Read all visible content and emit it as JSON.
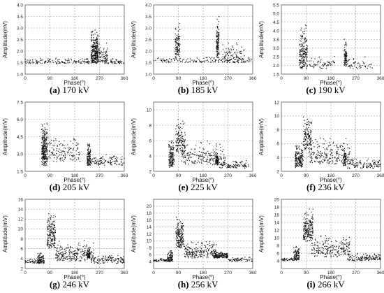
{
  "chart_data": [
    {
      "type": "scatter",
      "caption_letter": "(a)",
      "caption_value": "170 kV",
      "xlabel": "Phase(°)",
      "ylabel": "Amplitude(mV)",
      "xlim": [
        0,
        360
      ],
      "ylim": [
        1.0,
        4.0
      ],
      "xticks": [
        0,
        90,
        180,
        270,
        360
      ],
      "yticks": [
        1.0,
        1.5,
        2.0,
        2.5,
        3.0,
        3.5,
        4.0
      ],
      "clusters": [
        {
          "x": [
            0,
            360
          ],
          "y": [
            1.45,
            1.7
          ],
          "n": 220
        },
        {
          "x": [
            240,
            265
          ],
          "y": [
            1.5,
            3.0
          ],
          "n": 260
        },
        {
          "x": [
            262,
            300
          ],
          "y": [
            1.5,
            2.4
          ],
          "n": 70
        }
      ]
    },
    {
      "type": "scatter",
      "caption_letter": "(b)",
      "caption_value": "185 kV",
      "xlabel": "Phase(°)",
      "ylabel": "Amplitude(mV)",
      "xlim": [
        0,
        360
      ],
      "ylim": [
        1.0,
        4.0
      ],
      "xticks": [
        0,
        90,
        180,
        270,
        360
      ],
      "yticks": [
        1.0,
        1.5,
        2.0,
        2.5,
        3.0,
        3.5,
        4.0
      ],
      "clusters": [
        {
          "x": [
            0,
            360
          ],
          "y": [
            1.5,
            1.75
          ],
          "n": 160
        },
        {
          "x": [
            78,
            96
          ],
          "y": [
            1.6,
            3.3
          ],
          "n": 110
        },
        {
          "x": [
            228,
            238
          ],
          "y": [
            1.7,
            3.6
          ],
          "n": 110
        },
        {
          "x": [
            250,
            330
          ],
          "y": [
            1.6,
            2.4
          ],
          "n": 70
        }
      ]
    },
    {
      "type": "scatter",
      "caption_letter": "(c)",
      "caption_value": "190 kV",
      "xlabel": "Phase(°)",
      "ylabel": "Amplitude(mV)",
      "xlim": [
        0,
        360
      ],
      "ylim": [
        1.5,
        5.5
      ],
      "xticks": [
        0,
        90,
        180,
        270,
        360
      ],
      "yticks": [
        1.5,
        2.0,
        2.5,
        3.0,
        3.5,
        4.0,
        4.5,
        5.0,
        5.5
      ],
      "clusters": [
        {
          "x": [
            65,
            95
          ],
          "y": [
            1.8,
            4.5
          ],
          "n": 190
        },
        {
          "x": [
            100,
            200
          ],
          "y": [
            1.8,
            2.6
          ],
          "n": 60
        },
        {
          "x": [
            228,
            238
          ],
          "y": [
            1.9,
            3.6
          ],
          "n": 80
        },
        {
          "x": [
            240,
            330
          ],
          "y": [
            1.8,
            2.6
          ],
          "n": 50
        }
      ]
    },
    {
      "type": "scatter",
      "caption_letter": "(d)",
      "caption_value": "205 kV",
      "xlabel": "Phase(°)",
      "ylabel": "Amplitude(mV)",
      "xlim": [
        0,
        360
      ],
      "ylim": [
        1.5,
        7.5
      ],
      "xticks": [
        0,
        90,
        180,
        270,
        360
      ],
      "yticks": [
        1.5,
        3.0,
        4.5,
        6.0,
        7.5
      ],
      "clusters": [
        {
          "x": [
            60,
            80
          ],
          "y": [
            2.0,
            6.0
          ],
          "n": 260
        },
        {
          "x": [
            80,
            200
          ],
          "y": [
            2.3,
            4.6
          ],
          "n": 140
        },
        {
          "x": [
            225,
            238
          ],
          "y": [
            2.0,
            4.2
          ],
          "n": 110
        },
        {
          "x": [
            238,
            360
          ],
          "y": [
            2.0,
            3.0
          ],
          "n": 110
        }
      ]
    },
    {
      "type": "scatter",
      "caption_letter": "(e)",
      "caption_value": "225 kV",
      "xlabel": "Phase(°)",
      "ylabel": "Amplitude(mV)",
      "xlim": [
        0,
        360
      ],
      "ylim": [
        2,
        11
      ],
      "xticks": [
        0,
        90,
        180,
        270,
        360
      ],
      "yticks": [
        2,
        4,
        6,
        8,
        10
      ],
      "clusters": [
        {
          "x": [
            55,
            75
          ],
          "y": [
            2.5,
            6.5
          ],
          "n": 140
        },
        {
          "x": [
            80,
            115
          ],
          "y": [
            4.5,
            9.0
          ],
          "n": 130
        },
        {
          "x": [
            100,
            260
          ],
          "y": [
            2.8,
            6.0
          ],
          "n": 200
        },
        {
          "x": [
            225,
            235
          ],
          "y": [
            2.8,
            4.5
          ],
          "n": 70
        },
        {
          "x": [
            240,
            345
          ],
          "y": [
            2.4,
            3.5
          ],
          "n": 90
        }
      ]
    },
    {
      "type": "scatter",
      "caption_letter": "(f)",
      "caption_value": "236 kV",
      "xlabel": "Phase(°)",
      "ylabel": "Amplitude(mV)",
      "xlim": [
        0,
        360
      ],
      "ylim": [
        2,
        12
      ],
      "xticks": [
        0,
        90,
        180,
        270,
        360
      ],
      "yticks": [
        2,
        4,
        6,
        8,
        10,
        12
      ],
      "clusters": [
        {
          "x": [
            50,
            80
          ],
          "y": [
            2.5,
            6.5
          ],
          "n": 160
        },
        {
          "x": [
            80,
            110
          ],
          "y": [
            5.0,
            10.5
          ],
          "n": 130
        },
        {
          "x": [
            100,
            250
          ],
          "y": [
            3.0,
            7.0
          ],
          "n": 220
        },
        {
          "x": [
            225,
            235
          ],
          "y": [
            2.8,
            5.5
          ],
          "n": 60
        },
        {
          "x": [
            240,
            360
          ],
          "y": [
            2.4,
            4.0
          ],
          "n": 110
        }
      ]
    },
    {
      "type": "scatter",
      "caption_letter": "(g)",
      "caption_value": "246 kV",
      "xlabel": "Phase(°)",
      "ylabel": "Amplitude(mV)",
      "xlim": [
        0,
        360
      ],
      "ylim": [
        2,
        16
      ],
      "xticks": [
        0,
        90,
        180,
        270,
        360
      ],
      "yticks": [
        2,
        4,
        6,
        8,
        10,
        12,
        14,
        16
      ],
      "clusters": [
        {
          "x": [
            45,
            70
          ],
          "y": [
            3.0,
            5.5
          ],
          "n": 90
        },
        {
          "x": [
            80,
            110
          ],
          "y": [
            6.0,
            14.0
          ],
          "n": 170
        },
        {
          "x": [
            110,
            250
          ],
          "y": [
            3.5,
            8.0
          ],
          "n": 220
        },
        {
          "x": [
            225,
            235
          ],
          "y": [
            4.0,
            6.5
          ],
          "n": 70
        },
        {
          "x": [
            240,
            360
          ],
          "y": [
            3.0,
            5.0
          ],
          "n": 120
        },
        {
          "x": [
            0,
            60
          ],
          "y": [
            3.0,
            4.0
          ],
          "n": 50
        }
      ]
    },
    {
      "type": "scatter",
      "caption_letter": "(h)",
      "caption_value": "256 kV",
      "xlabel": "Phase(°)",
      "ylabel": "Amplitude(mV)",
      "xlim": [
        0,
        360
      ],
      "ylim": [
        2,
        22
      ],
      "xticks": [
        0,
        90,
        180,
        270,
        360
      ],
      "yticks": [
        4,
        6,
        8,
        10,
        12,
        14,
        16,
        18,
        20
      ],
      "clusters": [
        {
          "x": [
            50,
            70
          ],
          "y": [
            4.0,
            8.0
          ],
          "n": 90
        },
        {
          "x": [
            80,
            110
          ],
          "y": [
            8.0,
            18.0
          ],
          "n": 170
        },
        {
          "x": [
            110,
            230
          ],
          "y": [
            5.0,
            10.0
          ],
          "n": 200
        },
        {
          "x": [
            220,
            270
          ],
          "y": [
            5.0,
            7.0
          ],
          "n": 160
        },
        {
          "x": [
            0,
            60
          ],
          "y": [
            4.0,
            5.0
          ],
          "n": 50
        },
        {
          "x": [
            270,
            360
          ],
          "y": [
            4.0,
            5.5
          ],
          "n": 60
        }
      ]
    },
    {
      "type": "scatter",
      "caption_letter": "(i)",
      "caption_value": "266 kV",
      "xlabel": "Phase(°)",
      "ylabel": "Amplitude(mV)",
      "xlim": [
        0,
        360
      ],
      "ylim": [
        2,
        20
      ],
      "xticks": [
        0,
        90,
        180,
        270,
        360
      ],
      "yticks": [
        4,
        6,
        8,
        10,
        12,
        14,
        16,
        18,
        20
      ],
      "clusters": [
        {
          "x": [
            45,
            65
          ],
          "y": [
            4.0,
            8.0
          ],
          "n": 90
        },
        {
          "x": [
            80,
            115
          ],
          "y": [
            9.0,
            18.0
          ],
          "n": 180
        },
        {
          "x": [
            110,
            250
          ],
          "y": [
            5.0,
            11.0
          ],
          "n": 220
        },
        {
          "x": [
            240,
            360
          ],
          "y": [
            4.0,
            6.0
          ],
          "n": 130
        },
        {
          "x": [
            0,
            50
          ],
          "y": [
            4.0,
            5.0
          ],
          "n": 40
        }
      ]
    }
  ]
}
